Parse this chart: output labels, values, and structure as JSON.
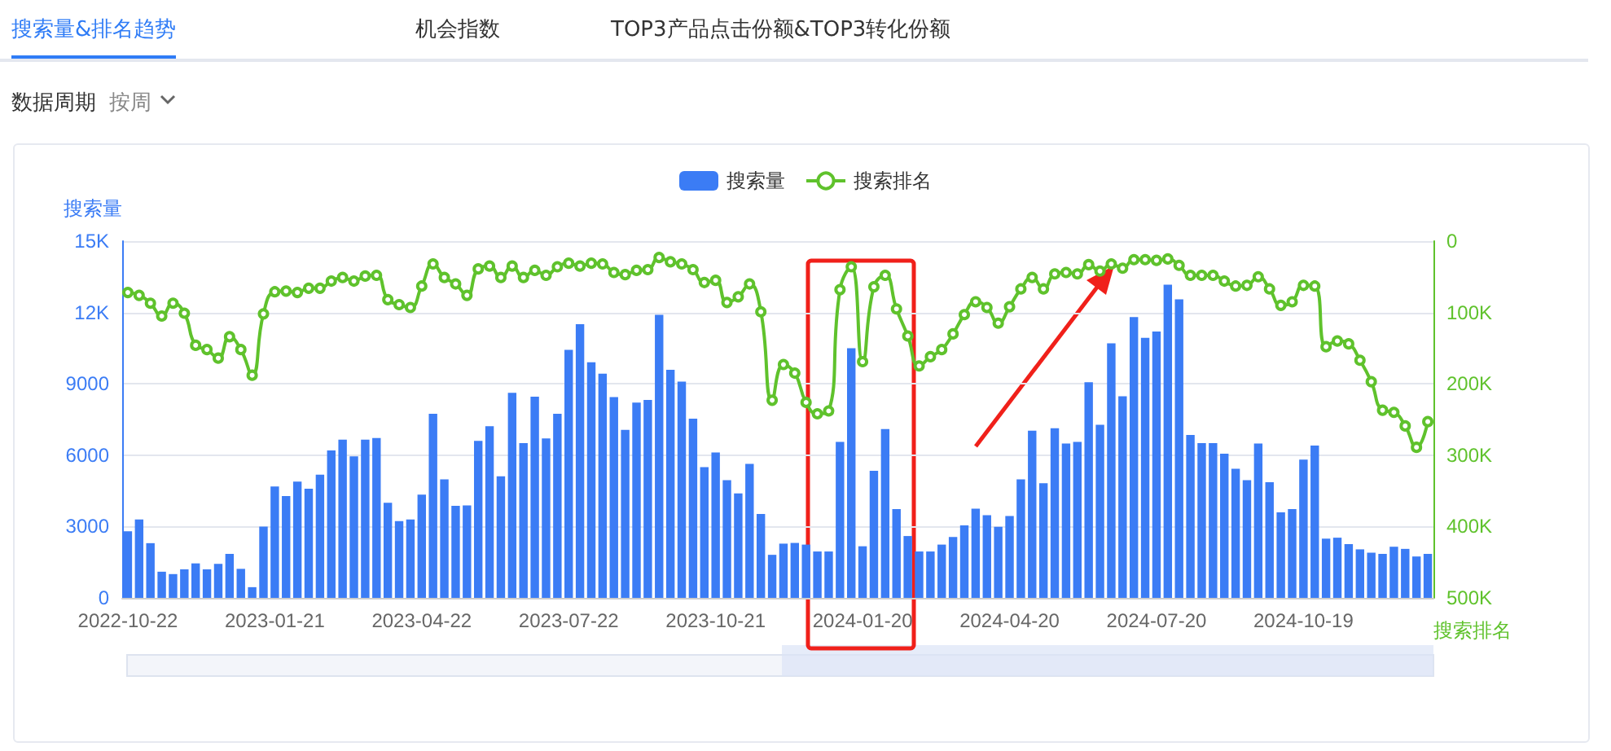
{
  "chart_data": {
    "type": "bar",
    "annotations": [
      "搜索量&排名趋势",
      "机会指数",
      "TOP3产品点击份额&TOP3转化份额",
      "数据周期",
      "按周"
    ],
    "ylabel": "搜索量",
    "y2label": "搜索排名",
    "categories": [
      "2022-10-22",
      null,
      null,
      null,
      null,
      null,
      null,
      null,
      null,
      null,
      null,
      null,
      null,
      "2023-01-21",
      null,
      null,
      null,
      null,
      null,
      null,
      null,
      null,
      null,
      null,
      null,
      null,
      "2023-04-22",
      null,
      null,
      null,
      null,
      null,
      null,
      null,
      null,
      null,
      null,
      null,
      null,
      "2023-07-22",
      null,
      null,
      null,
      null,
      null,
      null,
      null,
      null,
      null,
      null,
      null,
      null,
      "2023-10-21",
      null,
      null,
      null,
      null,
      null,
      null,
      null,
      null,
      null,
      null,
      null,
      null,
      "2024-01-20",
      null,
      null,
      null,
      null,
      null,
      null,
      null,
      null,
      null,
      null,
      null,
      null,
      "2024-04-20",
      null,
      null,
      null,
      null,
      null,
      null,
      null,
      null,
      null,
      null,
      null,
      null,
      "2024-07-20",
      null,
      null,
      null,
      null,
      null,
      null,
      null,
      null,
      null,
      null,
      null,
      null,
      "2024-10-19",
      null,
      null,
      null,
      null,
      null,
      null,
      null,
      null,
      null,
      null,
      null
    ],
    "series": [
      {
        "name": "搜索量",
        "color": "#3b7cf5",
        "values": [
          2800,
          3300,
          2300,
          1100,
          1000,
          1200,
          1450,
          1200,
          1430,
          1850,
          1220,
          450,
          3000,
          4680,
          4280,
          4890,
          4590,
          5180,
          6200,
          6650,
          5950,
          6650,
          6720,
          4000,
          3230,
          3300,
          4340,
          7740,
          4980,
          3870,
          3890,
          6600,
          7220,
          5110,
          8620,
          6510,
          8460,
          6700,
          7740,
          10430,
          11510,
          9910,
          9430,
          8440,
          7060,
          8210,
          8320,
          11900,
          9590,
          9090,
          7530,
          5500,
          6110,
          4950,
          4390,
          5630,
          3530,
          1810,
          2280,
          2310,
          2240,
          1950,
          1950,
          6560,
          10500,
          2170,
          5340,
          7100,
          3730,
          2600,
          1950,
          1950,
          2240,
          2560,
          3050,
          3750,
          3480,
          2990,
          3440,
          4980,
          7030,
          4820,
          7130,
          6490,
          6560,
          9070,
          7280,
          10700,
          8480,
          11810,
          10930,
          11200,
          13170,
          12550,
          6850,
          6510,
          6510,
          6060,
          5430,
          4950,
          6490,
          4860,
          3600,
          3730,
          5810,
          6400,
          2490,
          2530,
          2260,
          2040,
          1900,
          1850,
          2150,
          2060,
          1740,
          1850
        ]
      },
      {
        "name": "搜索排名",
        "type": "line",
        "axis": "y2",
        "color": "#5fc22c",
        "values": [
          72000,
          76000,
          87000,
          105000,
          87000,
          101000,
          146000,
          152000,
          164000,
          134000,
          152000,
          188000,
          102000,
          71000,
          70000,
          72000,
          66000,
          66000,
          56000,
          51000,
          56000,
          49000,
          48000,
          82000,
          89000,
          93000,
          63000,
          32000,
          51000,
          60000,
          76000,
          39000,
          35000,
          51000,
          35000,
          51000,
          41000,
          48000,
          36000,
          31000,
          35000,
          31000,
          32000,
          44000,
          47000,
          41000,
          40000,
          23000,
          29000,
          32000,
          40000,
          58000,
          55000,
          86000,
          78000,
          60000,
          99000,
          223000,
          173000,
          185000,
          226000,
          242000,
          238000,
          68000,
          36000,
          169000,
          64000,
          48000,
          95000,
          133000,
          175000,
          162000,
          152000,
          130000,
          103000,
          85000,
          93000,
          115000,
          92000,
          67000,
          51000,
          67000,
          46000,
          44000,
          46000,
          33000,
          42000,
          32000,
          38000,
          26000,
          26000,
          27000,
          25000,
          34000,
          48000,
          48000,
          48000,
          56000,
          63000,
          62000,
          50000,
          67000,
          90000,
          85000,
          62000,
          63000,
          148000,
          140000,
          144000,
          167000,
          197000,
          237000,
          240000,
          259000,
          289000,
          253000
        ]
      }
    ],
    "ylim": [
      0,
      15000
    ],
    "yticks": [
      0,
      3000,
      6000,
      9000,
      {
        "value": 12000,
        "label": "12K"
      },
      {
        "value": 15000,
        "label": "15K"
      }
    ],
    "y2lim": [
      500000,
      0
    ],
    "y2ticks": [
      0,
      {
        "value": 100000,
        "label": "100K"
      },
      {
        "value": 200000,
        "label": "200K"
      },
      {
        "value": 300000,
        "label": "300K"
      },
      {
        "value": 400000,
        "label": "400K"
      },
      {
        "value": 500000,
        "label": "500K"
      }
    ],
    "grid": "y",
    "legend": "top",
    "marker": "circle",
    "line_style": "solid"
  }
}
